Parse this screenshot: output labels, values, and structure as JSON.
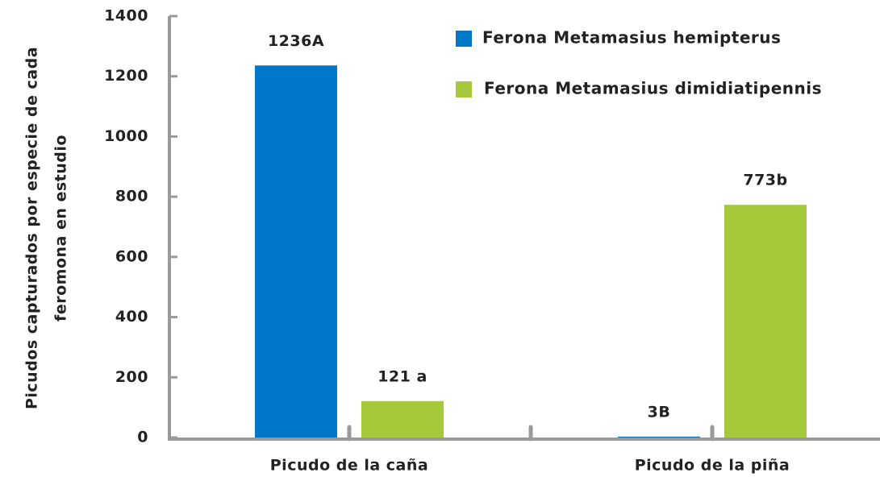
{
  "chart_data": {
    "type": "bar",
    "categories": [
      "Picudo de la caña",
      "Picudo de la piña"
    ],
    "series": [
      {
        "name": "Ferona Metamasius hemipterus",
        "color": "#0077c8",
        "values": [
          1236,
          3
        ],
        "value_labels": [
          "1236A",
          "3B"
        ]
      },
      {
        "name": "Ferona Metamasius dimidiatipennis",
        "color": "#a4c93a",
        "values": [
          121,
          773
        ],
        "value_labels": [
          "121 a",
          "773b"
        ]
      }
    ],
    "ylabel": [
      "Picudos capturados por especie de cada",
      "feromona en estudio"
    ],
    "ylim": [
      0,
      1400
    ],
    "yticks": [
      0,
      200,
      400,
      600,
      800,
      1000,
      1200,
      1400
    ]
  }
}
